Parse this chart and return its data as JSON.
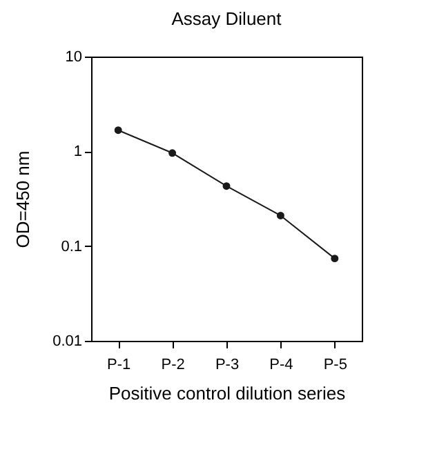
{
  "chart_data": {
    "type": "line",
    "title": "Assay Diluent",
    "xlabel": "Positive control dilution series",
    "ylabel": "OD=450 nm",
    "categories": [
      "P-1",
      "P-2",
      "P-3",
      "P-4",
      "P-5"
    ],
    "series": [
      {
        "color": "#1a1a1a",
        "values": [
          1.67,
          0.96,
          0.43,
          0.21,
          0.074
        ]
      }
    ],
    "log": "y",
    "ylim": [
      0.01,
      10
    ],
    "yticks": [
      0.01,
      0.1,
      1,
      10
    ],
    "grid": false,
    "marker": "circle",
    "line_style": "solid"
  }
}
